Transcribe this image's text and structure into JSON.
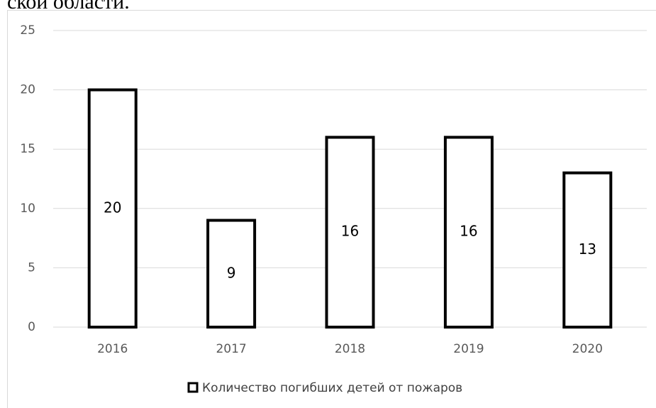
{
  "caption": "ской области.",
  "chart_data": {
    "type": "bar",
    "categories": [
      "2016",
      "2017",
      "2018",
      "2019",
      "2020"
    ],
    "series": [
      {
        "name": "Количество погибших детей от пожаров",
        "color": "#000000",
        "values": [
          20,
          9,
          16,
          16,
          13
        ]
      }
    ],
    "ylim": [
      0,
      25
    ],
    "yticks": [
      0,
      5,
      10,
      15,
      20,
      25
    ],
    "grid": true,
    "legend": "bottom",
    "data_labels": true
  }
}
